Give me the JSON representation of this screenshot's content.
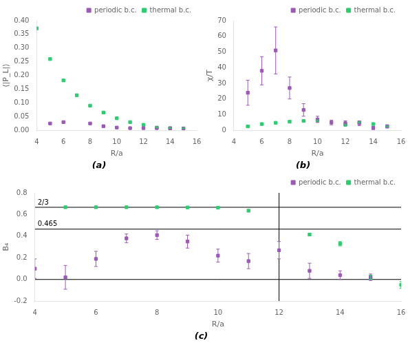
{
  "chart_data": [
    {
      "type": "scatter",
      "title": "(a)",
      "x_label": "R/a",
      "y_label": "⟨|P_L|⟩",
      "xlim": [
        4,
        16
      ],
      "ylim": [
        0,
        0.4
      ],
      "xticks": [
        4,
        6,
        8,
        10,
        12,
        14,
        16
      ],
      "yticks": [
        {
          "value": 0,
          "label": "0.00"
        },
        0.05,
        {
          "value": 0.1,
          "label": "0.10"
        },
        0.15,
        {
          "value": 0.2,
          "label": "0.20"
        },
        0.25,
        {
          "value": 0.3,
          "label": "0.30"
        },
        0.35,
        {
          "value": 0.4,
          "label": "0.40"
        }
      ],
      "grid": false,
      "legend": "upper right",
      "series": [
        {
          "name": "periodic b.c.",
          "color": "#9b59b6",
          "marker": "square",
          "x": [
            5,
            6,
            8,
            9,
            10,
            11,
            12,
            13,
            14,
            15
          ],
          "values": [
            0.025,
            0.03,
            0.025,
            0.015,
            0.01,
            0.008,
            0.008,
            0.008,
            0.007,
            0.006
          ],
          "yerr": [
            0.002,
            0.002,
            0.002,
            0.002,
            0.001,
            0.001,
            0.001,
            0.001,
            0.001,
            0.001
          ]
        },
        {
          "name": "thermal b.c.",
          "color": "#2ecc71",
          "marker": "square",
          "x": [
            4,
            5,
            6,
            7,
            8,
            9,
            10,
            11,
            12,
            13,
            14,
            15
          ],
          "values": [
            0.372,
            0.26,
            0.182,
            0.128,
            0.09,
            0.065,
            0.044,
            0.03,
            0.02,
            0.01,
            0.008,
            0.007
          ],
          "yerr": [
            0.003,
            0.003,
            0.003,
            0.003,
            0.002,
            0.002,
            0.002,
            0.001,
            0.001,
            0.001,
            0.001,
            0.001
          ]
        }
      ]
    },
    {
      "type": "scatter",
      "title": "(b)",
      "x_label": "R/a",
      "y_label": "χ/T",
      "xlim": [
        4,
        16
      ],
      "ylim": [
        0,
        70
      ],
      "xticks": [
        4,
        6,
        8,
        10,
        12,
        14,
        16
      ],
      "yticks": [
        0,
        10,
        20,
        30,
        40,
        50,
        60,
        70
      ],
      "grid": false,
      "legend": "upper right",
      "series": [
        {
          "name": "periodic b.c.",
          "color": "#9b59b6",
          "marker": "square",
          "x": [
            5,
            6,
            7,
            8,
            9,
            10,
            11,
            12,
            13,
            14,
            15
          ],
          "values": [
            24,
            38,
            51,
            27,
            13,
            7,
            5,
            4.5,
            4.5,
            1.5,
            2.5
          ],
          "yerr": [
            8,
            9,
            15,
            7,
            4,
            2,
            1.5,
            1.5,
            1.5,
            1.0,
            1.0
          ]
        },
        {
          "name": "thermal b.c.",
          "color": "#2ecc71",
          "marker": "square",
          "x": [
            5,
            6,
            7,
            8,
            9,
            10,
            12,
            13,
            14,
            15
          ],
          "values": [
            2.5,
            4.0,
            4.8,
            5.5,
            6.0,
            6.2,
            3.5,
            5.0,
            4.0,
            2.5
          ],
          "yerr": [
            0.4,
            0.4,
            0.4,
            0.4,
            0.4,
            0.4,
            0.4,
            0.4,
            0.4,
            0.4
          ]
        }
      ]
    },
    {
      "type": "scatter",
      "title": "(c)",
      "x_label": "R/a",
      "y_label": "B₄",
      "xlim": [
        4,
        16
      ],
      "ylim": [
        -0.2,
        0.8
      ],
      "xticks": [
        4,
        6,
        8,
        10,
        12,
        14,
        16
      ],
      "yticks": [
        -0.2,
        {
          "value": 0,
          "label": "0.0"
        },
        0.2,
        0.4,
        0.6,
        0.8
      ],
      "grid": false,
      "legend": "upper right",
      "hlines": [
        0.0,
        {
          "value": 0.465,
          "label": "0.465"
        },
        {
          "value": 0.6667,
          "label": "2/3"
        }
      ],
      "vlines": [
        12.0
      ],
      "series": [
        {
          "name": "periodic b.c.",
          "color": "#9b59b6",
          "marker": "square",
          "x": [
            4,
            5,
            6,
            7,
            8,
            9,
            10,
            11,
            12,
            13,
            14,
            15
          ],
          "values": [
            0.1,
            0.02,
            0.19,
            0.38,
            0.41,
            0.35,
            0.22,
            0.17,
            0.27,
            0.08,
            0.04,
            0.02
          ],
          "yerr": [
            0.09,
            0.11,
            0.07,
            0.04,
            0.04,
            0.06,
            0.06,
            0.07,
            0.08,
            0.07,
            0.04,
            0.03
          ]
        },
        {
          "name": "thermal b.c.",
          "color": "#2ecc71",
          "marker": "square",
          "x": [
            5,
            6,
            7,
            8,
            9,
            10,
            11,
            13,
            14,
            15,
            16
          ],
          "values": [
            0.667,
            0.667,
            0.667,
            0.667,
            0.665,
            0.663,
            0.635,
            0.415,
            0.33,
            0.02,
            -0.05
          ],
          "yerr": [
            0.003,
            0.003,
            0.003,
            0.003,
            0.003,
            0.003,
            0.01,
            0.01,
            0.02,
            0.02,
            0.03
          ]
        }
      ]
    }
  ]
}
